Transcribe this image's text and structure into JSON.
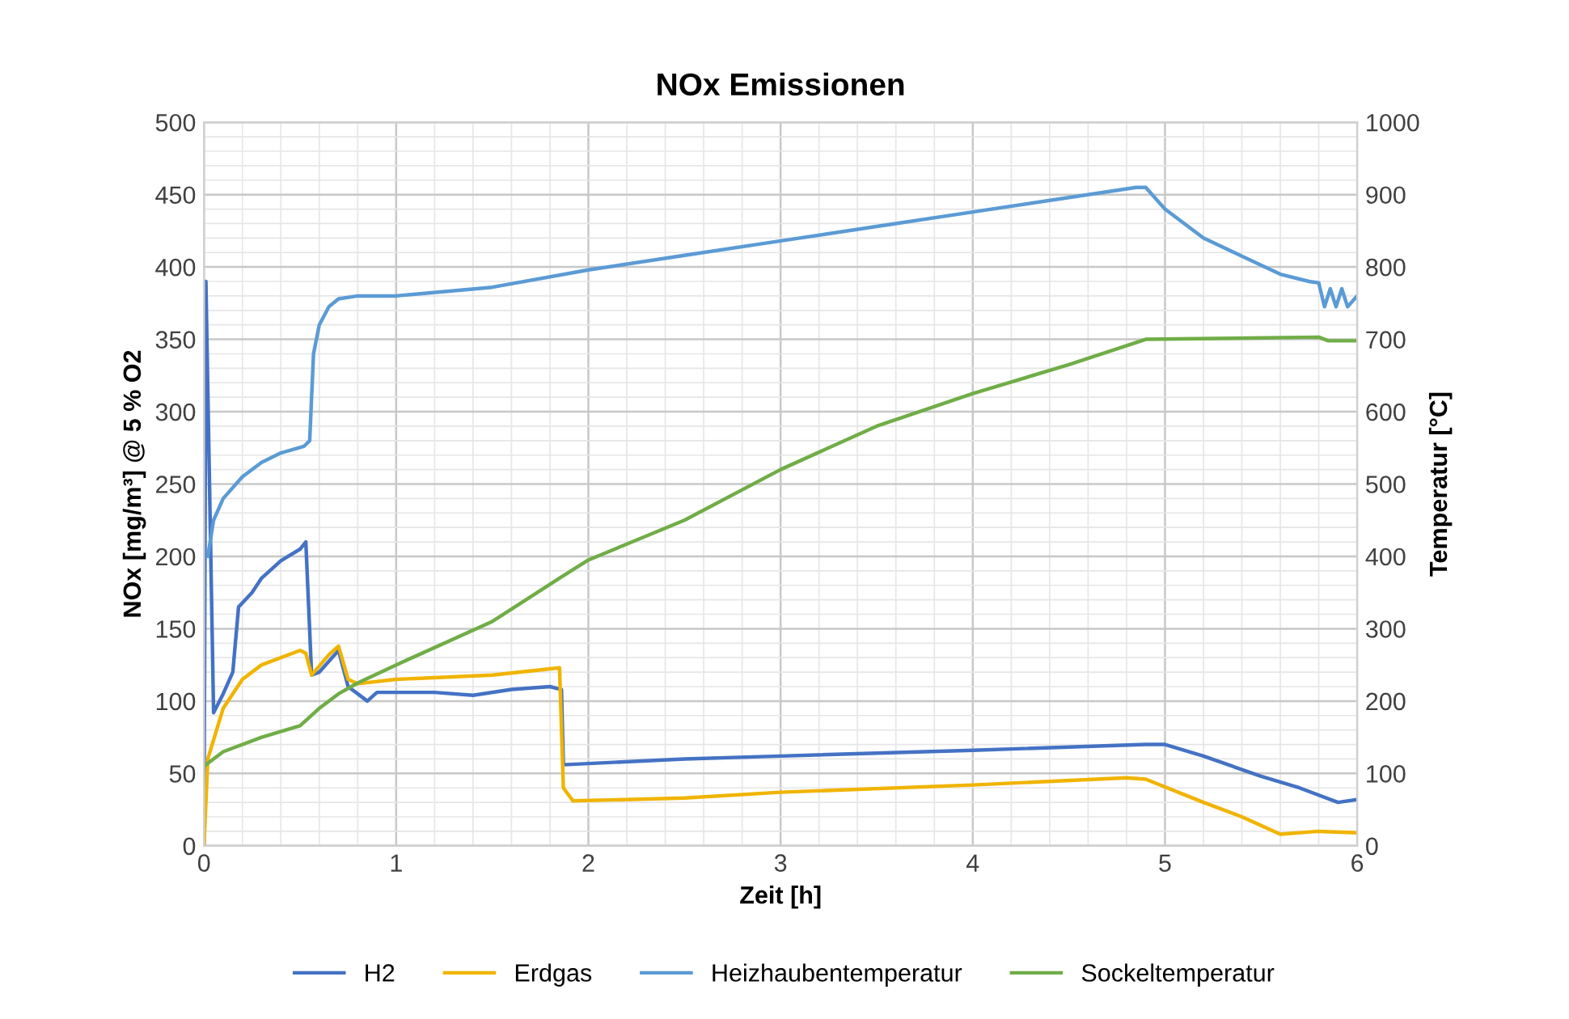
{
  "chart_data": {
    "type": "line",
    "title": "NOx Emissionen",
    "xlabel": "Zeit [h]",
    "ylabel": "NOx [mg/m³] @ 5 % O2",
    "y2label": "Temperatur [°C]",
    "xlim": [
      0,
      6
    ],
    "xticks": [
      0,
      1,
      2,
      3,
      4,
      5,
      6
    ],
    "ylim": [
      0,
      500
    ],
    "yticks": [
      0,
      50,
      100,
      150,
      200,
      250,
      300,
      350,
      400,
      450,
      500
    ],
    "y2lim": [
      0,
      1000
    ],
    "y2ticks": [
      0,
      100,
      200,
      300,
      400,
      500,
      600,
      700,
      800,
      900,
      1000
    ],
    "grid": true,
    "legend": "bottom",
    "marker": "none",
    "line_style": "solid",
    "series": [
      {
        "name": "H2",
        "color": "#4472c4",
        "x": [
          0,
          0.01,
          0.05,
          0.1,
          0.15,
          0.18,
          0.25,
          0.3,
          0.4,
          0.5,
          0.53,
          0.56,
          0.6,
          0.7,
          0.75,
          0.85,
          0.9,
          1.2,
          1.4,
          1.6,
          1.8,
          1.86,
          1.87,
          2.5,
          3,
          4,
          4.9,
          5,
          5.2,
          5.5,
          5.7,
          5.9,
          6
        ],
        "values": [
          0,
          390,
          92,
          105,
          120,
          165,
          175,
          185,
          197,
          205,
          210,
          118,
          120,
          135,
          110,
          100,
          106,
          106,
          104,
          108,
          110,
          108,
          56,
          60,
          62,
          66,
          70,
          70,
          62,
          48,
          40,
          30,
          32
        ]
      },
      {
        "name": "Erdgas",
        "color": "#f0b400",
        "x": [
          0,
          0.02,
          0.1,
          0.2,
          0.3,
          0.5,
          0.53,
          0.56,
          0.65,
          0.7,
          0.75,
          0.8,
          1.0,
          1.5,
          1.85,
          1.87,
          1.92,
          2.5,
          3,
          4,
          4.8,
          4.9,
          5.2,
          5.4,
          5.6,
          5.8,
          6
        ],
        "values": [
          0,
          60,
          95,
          115,
          125,
          135,
          133,
          118,
          132,
          138,
          115,
          112,
          115,
          118,
          123,
          40,
          31,
          33,
          37,
          42,
          47,
          46,
          30,
          20,
          8,
          10,
          9
        ]
      },
      {
        "name": "Heizhaubentemperatur",
        "color": "#5b9bd5",
        "axis": "y2",
        "x": [
          0.02,
          0.05,
          0.1,
          0.2,
          0.3,
          0.4,
          0.52,
          0.55,
          0.57,
          0.6,
          0.65,
          0.7,
          0.8,
          1.0,
          1.5,
          2,
          2.5,
          3,
          3.5,
          4,
          4.5,
          4.85,
          4.9,
          5.0,
          5.2,
          5.4,
          5.6,
          5.75,
          5.8,
          5.83,
          5.86,
          5.89,
          5.92,
          5.95,
          6
        ],
        "values": [
          400,
          450,
          480,
          510,
          530,
          543,
          552,
          560,
          680,
          720,
          745,
          756,
          760,
          760,
          772,
          796,
          816,
          836,
          856,
          876,
          896,
          910,
          910,
          880,
          840,
          815,
          790,
          780,
          778,
          745,
          770,
          745,
          770,
          745,
          760
        ]
      },
      {
        "name": "Sockeltemperatur",
        "color": "#70ad47",
        "axis": "y2",
        "x": [
          0,
          0.1,
          0.3,
          0.5,
          0.6,
          0.7,
          0.8,
          1,
          1.5,
          1.85,
          2,
          2.5,
          3,
          3.5,
          4,
          4.5,
          4.9,
          5.8,
          5.85,
          6
        ],
        "values": [
          110,
          130,
          150,
          166,
          190,
          210,
          225,
          250,
          310,
          370,
          395,
          450,
          520,
          580,
          625,
          665,
          700,
          703,
          698,
          698
        ]
      }
    ]
  }
}
